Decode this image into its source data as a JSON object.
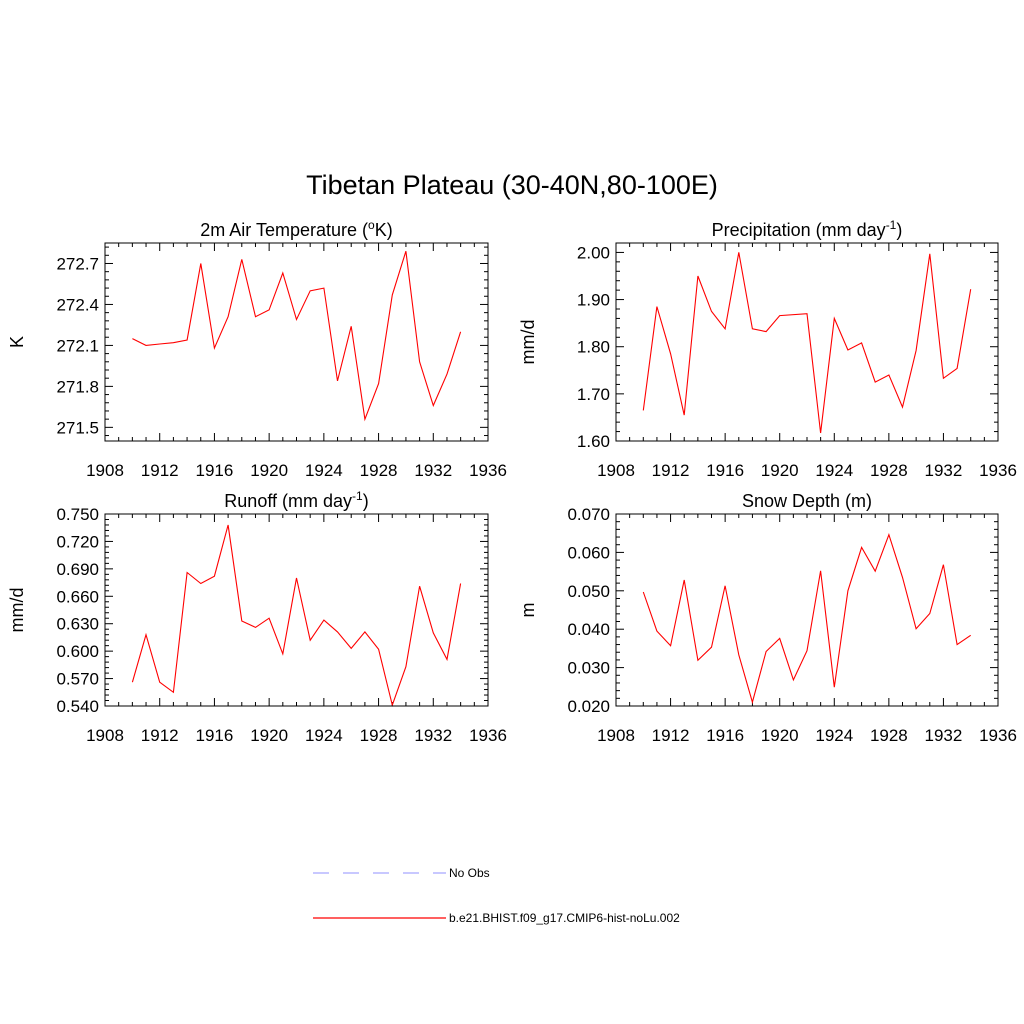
{
  "title": "Tibetan Plateau (30-40N,80-100E)",
  "colors": {
    "model": "#ff0000",
    "obs": "#a8a8ff",
    "axis": "#000000"
  },
  "chart_data": [
    {
      "type": "line",
      "title": "2m Air Temperature (°K)",
      "title_parts": [
        "2m Air Temperature (",
        "o",
        "K)"
      ],
      "ylabel": "K",
      "xlim": [
        1908,
        1936
      ],
      "ylim": [
        271.4,
        272.85
      ],
      "x_ticks": [
        1908,
        1912,
        1916,
        1920,
        1924,
        1928,
        1932,
        1936
      ],
      "y_ticks": [
        "271.5",
        "271.8",
        "272.1",
        "272.4",
        "272.7"
      ],
      "x": [
        1910,
        1911,
        1912,
        1913,
        1914,
        1915,
        1916,
        1917,
        1918,
        1919,
        1920,
        1921,
        1922,
        1923,
        1924,
        1925,
        1926,
        1927,
        1928,
        1929,
        1930,
        1931,
        1932,
        1933,
        1934
      ],
      "series": [
        {
          "name": "b.e21.BHIST.f09_g17.CMIP6-hist-noLu.002",
          "values": [
            272.15,
            272.1,
            272.11,
            272.12,
            272.14,
            272.7,
            272.08,
            272.31,
            272.73,
            272.31,
            272.36,
            272.63,
            272.29,
            272.5,
            272.52,
            271.84,
            272.24,
            271.56,
            271.82,
            272.47,
            272.79,
            271.98,
            271.66,
            271.89,
            272.2
          ]
        }
      ]
    },
    {
      "type": "line",
      "title": "Precipitation (mm day-1)",
      "title_parts": [
        "Precipitation (mm day",
        "-1",
        ")"
      ],
      "ylabel": "mm/d",
      "xlim": [
        1908,
        1936
      ],
      "ylim": [
        1.6,
        2.02
      ],
      "x_ticks": [
        1908,
        1912,
        1916,
        1920,
        1924,
        1928,
        1932,
        1936
      ],
      "y_ticks": [
        "1.60",
        "1.70",
        "1.80",
        "1.90",
        "2.00"
      ],
      "x": [
        1910,
        1911,
        1912,
        1913,
        1914,
        1915,
        1916,
        1917,
        1918,
        1919,
        1920,
        1922,
        1923,
        1924,
        1925,
        1926,
        1927,
        1928,
        1929,
        1930,
        1931,
        1932,
        1933,
        1934
      ],
      "series": [
        {
          "name": "b.e21.BHIST.f09_g17.CMIP6-hist-noLu.002",
          "values": [
            1.665,
            1.885,
            1.785,
            1.655,
            1.95,
            1.875,
            1.838,
            2.0,
            1.838,
            1.832,
            1.866,
            1.87,
            1.617,
            1.86,
            1.793,
            1.808,
            1.725,
            1.74,
            1.672,
            1.792,
            1.997,
            1.733,
            1.754,
            1.922
          ]
        }
      ]
    },
    {
      "type": "line",
      "title": "Runoff (mm day-1)",
      "title_parts": [
        "Runoff (mm day",
        "-1",
        ")"
      ],
      "ylabel": "mm/d",
      "xlim": [
        1908,
        1936
      ],
      "ylim": [
        0.54,
        0.75
      ],
      "x_ticks": [
        1908,
        1912,
        1916,
        1920,
        1924,
        1928,
        1932,
        1936
      ],
      "y_ticks": [
        "0.540",
        "0.570",
        "0.600",
        "0.630",
        "0.660",
        "0.690",
        "0.720",
        "0.750"
      ],
      "x": [
        1910,
        1911,
        1912,
        1913,
        1914,
        1915,
        1916,
        1917,
        1918,
        1919,
        1920,
        1921,
        1922,
        1923,
        1924,
        1925,
        1926,
        1927,
        1928,
        1929,
        1930,
        1931,
        1932,
        1933,
        1934
      ],
      "series": [
        {
          "name": "b.e21.BHIST.f09_g17.CMIP6-hist-noLu.002",
          "values": [
            0.566,
            0.618,
            0.566,
            0.555,
            0.686,
            0.674,
            0.682,
            0.738,
            0.633,
            0.626,
            0.636,
            0.597,
            0.68,
            0.612,
            0.634,
            0.621,
            0.603,
            0.621,
            0.602,
            0.541,
            0.583,
            0.671,
            0.62,
            0.591,
            0.674
          ]
        }
      ]
    },
    {
      "type": "line",
      "title": "Snow Depth (m)",
      "title_parts": [
        "Snow Depth (m)",
        "",
        ""
      ],
      "ylabel": "m",
      "xlim": [
        1908,
        1936
      ],
      "ylim": [
        0.02,
        0.07
      ],
      "x_ticks": [
        1908,
        1912,
        1916,
        1920,
        1924,
        1928,
        1932,
        1936
      ],
      "y_ticks": [
        "0.020",
        "0.030",
        "0.040",
        "0.050",
        "0.060",
        "0.070"
      ],
      "x": [
        1910,
        1911,
        1912,
        1913,
        1914,
        1915,
        1916,
        1917,
        1918,
        1919,
        1920,
        1921,
        1922,
        1923,
        1924,
        1925,
        1926,
        1927,
        1928,
        1929,
        1930,
        1931,
        1932,
        1933,
        1934
      ],
      "series": [
        {
          "name": "b.e21.BHIST.f09_g17.CMIP6-hist-noLu.002",
          "values": [
            0.0497,
            0.0395,
            0.0357,
            0.0528,
            0.0319,
            0.0353,
            0.0513,
            0.0333,
            0.021,
            0.0342,
            0.0376,
            0.0268,
            0.0344,
            0.0552,
            0.0249,
            0.05,
            0.0613,
            0.0551,
            0.0646,
            0.0535,
            0.0401,
            0.0441,
            0.0568,
            0.036,
            0.0384
          ]
        }
      ]
    }
  ],
  "legend": [
    {
      "label": "No Obs",
      "style": "dashed",
      "color": "#a8a8ff"
    },
    {
      "label": "b.e21.BHIST.f09_g17.CMIP6-hist-noLu.002",
      "style": "solid",
      "color": "#ff0000"
    }
  ]
}
